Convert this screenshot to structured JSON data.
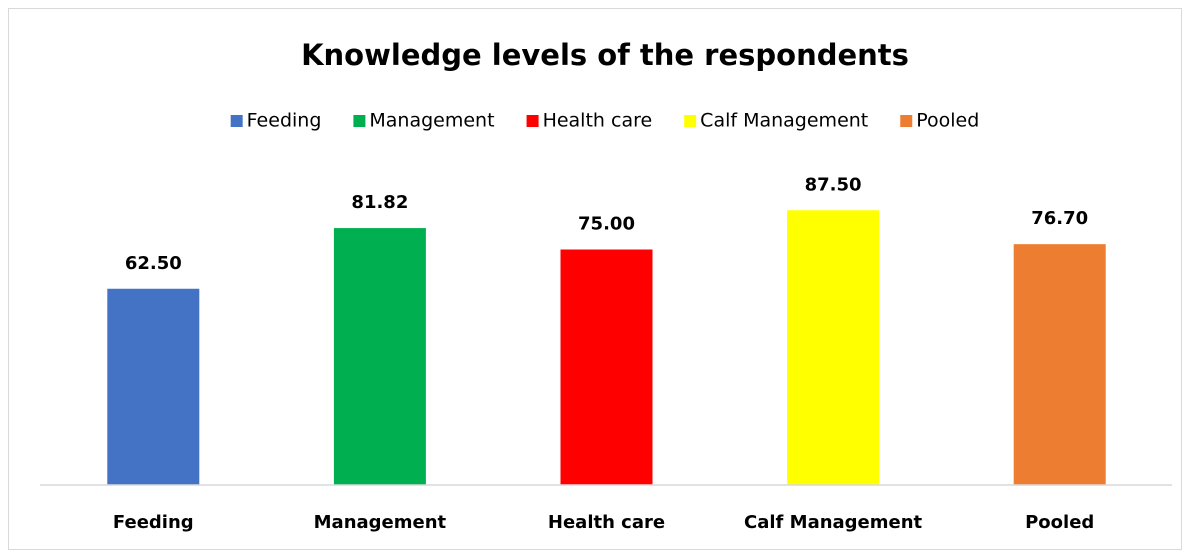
{
  "chart_data": {
    "type": "bar",
    "title": "Knowledge levels of the respondents",
    "categories": [
      "Feeding",
      "Management",
      "Health care",
      "Calf Management",
      "Pooled"
    ],
    "values": [
      62.5,
      81.82,
      75,
      87.5,
      76.7
    ],
    "value_labels": [
      "62.50",
      "81.82",
      "75.00",
      "87.50",
      "76.70"
    ],
    "colors": [
      "#4472c4",
      "#00b050",
      "#ff0000",
      "#ffff00",
      "#ed7d31"
    ],
    "ylim": [
      0,
      100
    ],
    "legend": "top"
  }
}
